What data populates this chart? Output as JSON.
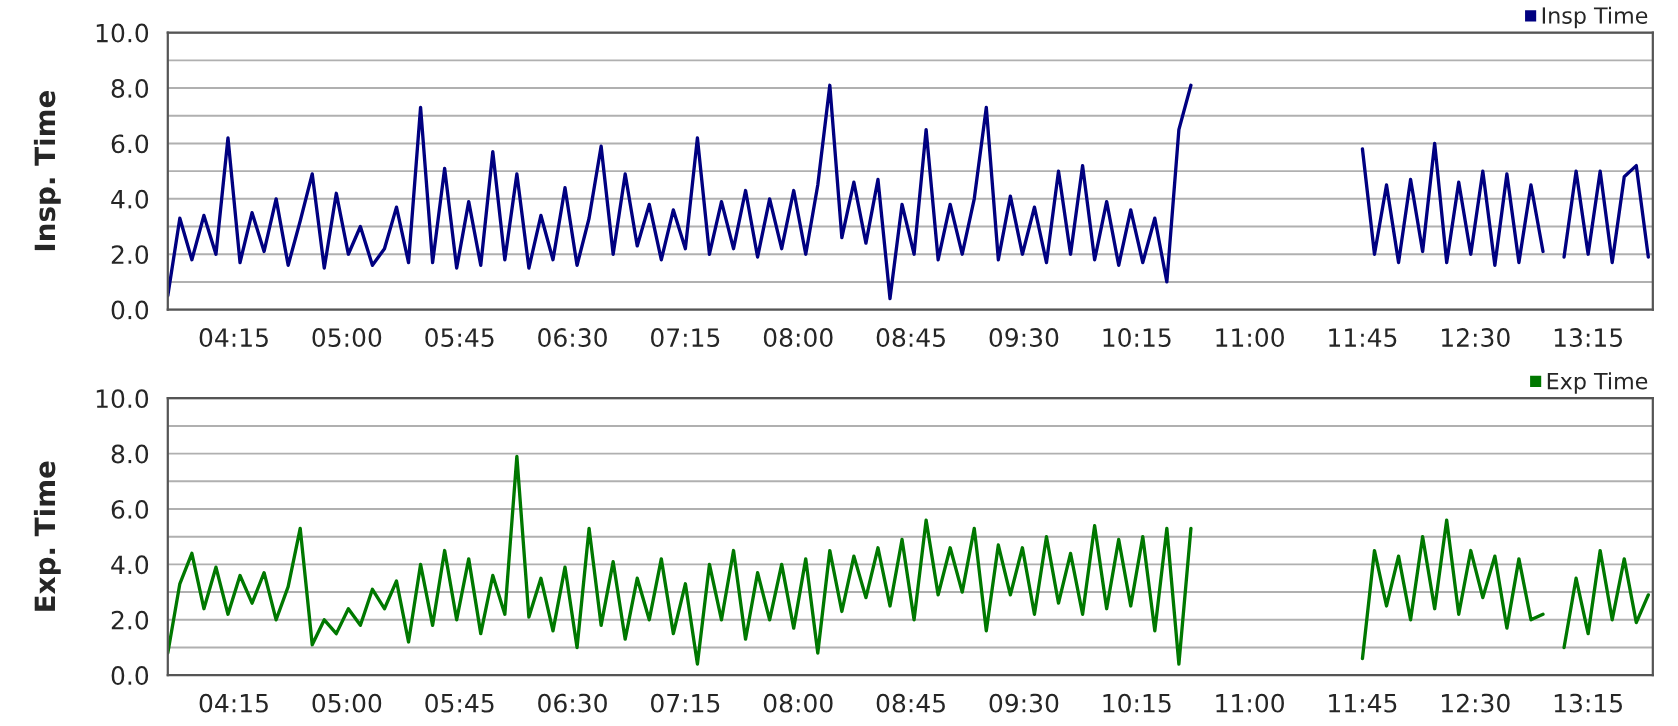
{
  "chart_data": [
    {
      "type": "line",
      "ylabel": "Insp. Time",
      "legend": "top right",
      "grid": "y",
      "marker": "none",
      "line_style": "solid",
      "xlim": [
        3.81,
        13.68
      ],
      "ylim": [
        0,
        10
      ],
      "xticks": [
        {
          "value": 4.25,
          "label": "04:15"
        },
        {
          "value": 5.0,
          "label": "05:00"
        },
        {
          "value": 5.75,
          "label": "05:45"
        },
        {
          "value": 6.5,
          "label": "06:30"
        },
        {
          "value": 7.25,
          "label": "07:15"
        },
        {
          "value": 8.0,
          "label": "08:00"
        },
        {
          "value": 8.75,
          "label": "08:45"
        },
        {
          "value": 9.5,
          "label": "09:30"
        },
        {
          "value": 10.25,
          "label": "10:15"
        },
        {
          "value": 11.0,
          "label": "11:00"
        },
        {
          "value": 11.75,
          "label": "11:45"
        },
        {
          "value": 12.5,
          "label": "12:30"
        },
        {
          "value": 13.25,
          "label": "13:15"
        }
      ],
      "yticks": [
        {
          "value": 0,
          "label": "0.0"
        },
        {
          "value": 1,
          "label": null
        },
        {
          "value": 2,
          "label": "2.0"
        },
        {
          "value": 3,
          "label": null
        },
        {
          "value": 4,
          "label": "4.0"
        },
        {
          "value": 5,
          "label": null
        },
        {
          "value": 6,
          "label": "6.0"
        },
        {
          "value": 7,
          "label": null
        },
        {
          "value": 8,
          "label": "8.0"
        },
        {
          "value": 9,
          "label": null
        },
        {
          "value": 10,
          "label": "10.0"
        }
      ],
      "x": [
        3.81,
        3.89,
        3.97,
        4.05,
        4.13,
        4.21,
        4.29,
        4.37,
        4.45,
        4.53,
        4.61,
        4.69,
        4.77,
        4.85,
        4.93,
        5.01,
        5.09,
        5.17,
        5.25,
        5.33,
        5.41,
        5.49,
        5.57,
        5.65,
        5.73,
        5.81,
        5.89,
        5.97,
        6.05,
        6.13,
        6.21,
        6.29,
        6.37,
        6.45,
        6.53,
        6.61,
        6.69,
        6.77,
        6.85,
        6.93,
        7.01,
        7.09,
        7.17,
        7.25,
        7.33,
        7.41,
        7.49,
        7.57,
        7.65,
        7.73,
        7.81,
        7.89,
        7.97,
        8.05,
        8.13,
        8.21,
        8.29,
        8.37,
        8.45,
        8.53,
        8.61,
        8.69,
        8.77,
        8.85,
        8.93,
        9.01,
        9.09,
        9.17,
        9.25,
        9.33,
        9.41,
        9.49,
        9.57,
        9.65,
        9.73,
        9.81,
        9.89,
        9.97,
        10.05,
        10.13,
        10.21,
        10.29,
        10.37,
        10.45,
        10.53,
        10.61,
        11.2,
        11.75,
        11.83,
        11.91,
        11.99,
        12.07,
        12.15,
        12.23,
        12.31,
        12.39,
        12.47,
        12.55,
        12.63,
        12.71,
        12.79,
        12.87,
        12.95,
        13.02,
        13.09,
        13.17,
        13.25,
        13.33,
        13.41,
        13.49,
        13.57,
        13.65
      ],
      "series": [
        {
          "name": "Insp Time",
          "color": "#000080",
          "values": [
            0.5,
            3.3,
            1.8,
            3.4,
            2.0,
            6.2,
            1.7,
            3.5,
            2.1,
            4.0,
            1.6,
            3.2,
            4.9,
            1.5,
            4.2,
            2.0,
            3.0,
            1.6,
            2.2,
            3.7,
            1.7,
            7.3,
            1.7,
            5.1,
            1.5,
            3.9,
            1.6,
            5.7,
            1.8,
            4.9,
            1.5,
            3.4,
            1.8,
            4.4,
            1.6,
            3.3,
            5.9,
            2.0,
            4.9,
            2.3,
            3.8,
            1.8,
            3.6,
            2.2,
            6.2,
            2.0,
            3.9,
            2.2,
            4.3,
            1.9,
            4.0,
            2.2,
            4.3,
            2.0,
            4.5,
            8.1,
            2.6,
            4.6,
            2.4,
            4.7,
            0.4,
            3.8,
            2.0,
            6.5,
            1.8,
            3.8,
            2.0,
            4.0,
            7.3,
            1.8,
            4.1,
            2.0,
            3.7,
            1.7,
            5.0,
            2.0,
            5.2,
            1.8,
            3.9,
            1.6,
            3.6,
            1.7,
            3.3,
            1.0,
            6.5,
            8.1,
            null,
            5.8,
            2.0,
            4.5,
            1.7,
            4.7,
            2.1,
            6.0,
            1.7,
            4.6,
            2.0,
            5.0,
            1.6,
            4.9,
            1.7,
            4.5,
            2.1,
            null,
            1.9,
            5.0,
            2.0,
            5.0,
            1.7,
            4.8,
            5.2,
            1.9
          ]
        }
      ]
    },
    {
      "type": "line",
      "ylabel": "Exp. Time",
      "legend": "top right",
      "grid": "y",
      "marker": "none",
      "line_style": "solid",
      "xlim": [
        3.81,
        13.68
      ],
      "ylim": [
        0,
        10
      ],
      "xticks": [
        {
          "value": 4.25,
          "label": "04:15"
        },
        {
          "value": 5.0,
          "label": "05:00"
        },
        {
          "value": 5.75,
          "label": "05:45"
        },
        {
          "value": 6.5,
          "label": "06:30"
        },
        {
          "value": 7.25,
          "label": "07:15"
        },
        {
          "value": 8.0,
          "label": "08:00"
        },
        {
          "value": 8.75,
          "label": "08:45"
        },
        {
          "value": 9.5,
          "label": "09:30"
        },
        {
          "value": 10.25,
          "label": "10:15"
        },
        {
          "value": 11.0,
          "label": "11:00"
        },
        {
          "value": 11.75,
          "label": "11:45"
        },
        {
          "value": 12.5,
          "label": "12:30"
        },
        {
          "value": 13.25,
          "label": "13:15"
        }
      ],
      "yticks": [
        {
          "value": 0,
          "label": "0.0"
        },
        {
          "value": 1,
          "label": null
        },
        {
          "value": 2,
          "label": "2.0"
        },
        {
          "value": 3,
          "label": null
        },
        {
          "value": 4,
          "label": "4.0"
        },
        {
          "value": 5,
          "label": null
        },
        {
          "value": 6,
          "label": "6.0"
        },
        {
          "value": 7,
          "label": null
        },
        {
          "value": 8,
          "label": "8.0"
        },
        {
          "value": 9,
          "label": null
        },
        {
          "value": 10,
          "label": "10.0"
        }
      ],
      "x": [
        3.81,
        3.89,
        3.97,
        4.05,
        4.13,
        4.21,
        4.29,
        4.37,
        4.45,
        4.53,
        4.61,
        4.69,
        4.77,
        4.85,
        4.93,
        5.01,
        5.09,
        5.17,
        5.25,
        5.33,
        5.41,
        5.49,
        5.57,
        5.65,
        5.73,
        5.81,
        5.89,
        5.97,
        6.05,
        6.13,
        6.21,
        6.29,
        6.37,
        6.45,
        6.53,
        6.61,
        6.69,
        6.77,
        6.85,
        6.93,
        7.01,
        7.09,
        7.17,
        7.25,
        7.33,
        7.41,
        7.49,
        7.57,
        7.65,
        7.73,
        7.81,
        7.89,
        7.97,
        8.05,
        8.13,
        8.21,
        8.29,
        8.37,
        8.45,
        8.53,
        8.61,
        8.69,
        8.77,
        8.85,
        8.93,
        9.01,
        9.09,
        9.17,
        9.25,
        9.33,
        9.41,
        9.49,
        9.57,
        9.65,
        9.73,
        9.81,
        9.89,
        9.97,
        10.05,
        10.13,
        10.21,
        10.29,
        10.37,
        10.45,
        10.53,
        10.61,
        11.2,
        11.75,
        11.83,
        11.91,
        11.99,
        12.07,
        12.15,
        12.23,
        12.31,
        12.39,
        12.47,
        12.55,
        12.63,
        12.71,
        12.79,
        12.87,
        12.95,
        13.02,
        13.09,
        13.17,
        13.25,
        13.33,
        13.41,
        13.49,
        13.57,
        13.65
      ],
      "series": [
        {
          "name": "Exp Time",
          "color": "#007800",
          "values": [
            0.8,
            3.3,
            4.4,
            2.4,
            3.9,
            2.2,
            3.6,
            2.6,
            3.7,
            2.0,
            3.2,
            5.3,
            1.1,
            2.0,
            1.5,
            2.4,
            1.8,
            3.1,
            2.4,
            3.4,
            1.2,
            4.0,
            1.8,
            4.5,
            2.0,
            4.2,
            1.5,
            3.6,
            2.2,
            7.9,
            2.1,
            3.5,
            1.6,
            3.9,
            1.0,
            5.3,
            1.8,
            4.1,
            1.3,
            3.5,
            2.0,
            4.2,
            1.5,
            3.3,
            0.4,
            4.0,
            2.0,
            4.5,
            1.3,
            3.7,
            2.0,
            4.0,
            1.7,
            4.2,
            0.8,
            4.5,
            2.3,
            4.3,
            2.8,
            4.6,
            2.5,
            4.9,
            2.0,
            5.6,
            2.9,
            4.6,
            3.0,
            5.3,
            1.6,
            4.7,
            2.9,
            4.6,
            2.2,
            5.0,
            2.6,
            4.4,
            2.2,
            5.4,
            2.4,
            4.9,
            2.5,
            5.0,
            1.6,
            5.3,
            0.4,
            5.3,
            null,
            0.6,
            4.5,
            2.5,
            4.3,
            2.0,
            5.0,
            2.4,
            5.6,
            2.2,
            4.5,
            2.8,
            4.3,
            1.7,
            4.2,
            2.0,
            2.2,
            null,
            1.0,
            3.5,
            1.5,
            4.5,
            2.0,
            4.2,
            1.9,
            2.9
          ]
        }
      ]
    }
  ]
}
